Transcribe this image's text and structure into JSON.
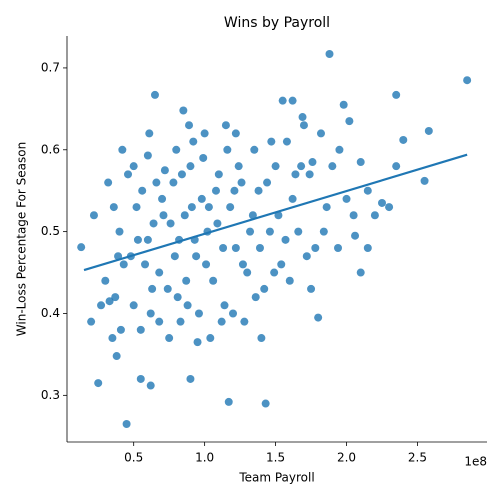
{
  "chart_data": {
    "type": "scatter",
    "title": "Wins by Payroll",
    "x_label": "Team Payroll",
    "y_label": "Win-Loss Percentage For Season",
    "x_offset_label": "1e8",
    "color": "#1f77b4",
    "xlim": [
      3000000,
      299000000
    ],
    "ylim": [
      0.243,
      0.739
    ],
    "xticks": [
      {
        "value": 50000000,
        "label": "0.5"
      },
      {
        "value": 100000000,
        "label": "1.0"
      },
      {
        "value": 150000000,
        "label": "1.5"
      },
      {
        "value": 200000000,
        "label": "2.0"
      },
      {
        "value": 250000000,
        "label": "2.5"
      }
    ],
    "yticks": [
      0.3,
      0.4,
      0.5,
      0.6,
      0.7
    ],
    "regression_line": {
      "x": [
        15000000,
        285000000
      ],
      "y": [
        0.453,
        0.594
      ]
    },
    "x": [
      45000000.0,
      143000000.0,
      117000000.0,
      25000000.0,
      188000000.0,
      285000000.0,
      65000000.0,
      235000000.0,
      85000000.0,
      198000000.0,
      155000000.0,
      162000000.0,
      13000000.0,
      20000000.0,
      22000000.0,
      35000000.0,
      38000000.0,
      55000000.0,
      62000000.0,
      90000000.0,
      95000000.0,
      255000000.0,
      258000000.0,
      240000000.0,
      210000000.0,
      215000000.0,
      180000000.0,
      175000000.0,
      42000000.0,
      50000000.0,
      60000000.0,
      72000000.0,
      80000000.0,
      92000000.0,
      100000000.0,
      115000000.0,
      122000000.0,
      135000000.0,
      30000000.0,
      33000000.0,
      37000000.0,
      40000000.0,
      43000000.0,
      48000000.0,
      52000000.0,
      56000000.0,
      60000000.0,
      64000000.0,
      68000000.0,
      70000000.0,
      74000000.0,
      78000000.0,
      82000000.0,
      86000000.0,
      90000000.0,
      94000000.0,
      98000000.0,
      102000000.0,
      106000000.0,
      110000000.0,
      114000000.0,
      118000000.0,
      122000000.0,
      126000000.0,
      130000000.0,
      134000000.0,
      138000000.0,
      142000000.0,
      146000000.0,
      150000000.0,
      154000000.0,
      158000000.0,
      162000000.0,
      166000000.0,
      170000000.0,
      174000000.0,
      178000000.0,
      182000000.0,
      186000000.0,
      190000000.0,
      195000000.0,
      200000000.0,
      205000000.0,
      210000000.0,
      215000000.0,
      220000000.0,
      225000000.0,
      230000000.0,
      235000000.0,
      202000000.0,
      50000000.0,
      55000000.0,
      62000000.0,
      68000000.0,
      75000000.0,
      83000000.0,
      88000000.0,
      96000000.0,
      104000000.0,
      112000000.0,
      120000000.0,
      128000000.0,
      136000000.0,
      140000000.0,
      32000000.0,
      36000000.0,
      46000000.0,
      53000000.0,
      58000000.0,
      66000000.0,
      76000000.0,
      84000000.0,
      91000000.0,
      99000000.0,
      108000000.0,
      116000000.0,
      124000000.0,
      132000000.0,
      144000000.0,
      152000000.0,
      160000000.0,
      168000000.0,
      176000000.0,
      71000000.0,
      79000000.0,
      87000000.0,
      93000000.0,
      101000000.0,
      109000000.0,
      113000000.0,
      127000000.0,
      139000000.0,
      149000000.0,
      157000000.0,
      164000000.0,
      172000000.0,
      184000000.0,
      194000000.0,
      206000000.0,
      41000000.0,
      27000000.0,
      39000000.0,
      63000000.0,
      81000000.0,
      103000000.0,
      121000000.0,
      147000000.0,
      169000000.0,
      61000000.0,
      89000000.0
    ],
    "values": [
      0.265,
      0.29,
      0.292,
      0.315,
      0.717,
      0.685,
      0.667,
      0.667,
      0.648,
      0.655,
      0.66,
      0.66,
      0.481,
      0.39,
      0.52,
      0.37,
      0.348,
      0.32,
      0.312,
      0.32,
      0.365,
      0.562,
      0.623,
      0.612,
      0.45,
      0.48,
      0.395,
      0.43,
      0.6,
      0.58,
      0.593,
      0.575,
      0.6,
      0.61,
      0.62,
      0.63,
      0.62,
      0.6,
      0.44,
      0.415,
      0.42,
      0.5,
      0.46,
      0.47,
      0.53,
      0.55,
      0.49,
      0.51,
      0.45,
      0.54,
      0.43,
      0.56,
      0.49,
      0.52,
      0.58,
      0.47,
      0.54,
      0.5,
      0.44,
      0.57,
      0.41,
      0.53,
      0.48,
      0.56,
      0.45,
      0.52,
      0.55,
      0.43,
      0.5,
      0.58,
      0.46,
      0.61,
      0.54,
      0.5,
      0.63,
      0.57,
      0.48,
      0.62,
      0.53,
      0.58,
      0.6,
      0.54,
      0.52,
      0.585,
      0.55,
      0.52,
      0.535,
      0.53,
      0.58,
      0.635,
      0.41,
      0.38,
      0.4,
      0.39,
      0.37,
      0.39,
      0.41,
      0.4,
      0.37,
      0.39,
      0.4,
      0.39,
      0.42,
      0.37,
      0.56,
      0.53,
      0.57,
      0.49,
      0.46,
      0.56,
      0.51,
      0.57,
      0.53,
      0.59,
      0.55,
      0.6,
      0.58,
      0.5,
      0.56,
      0.52,
      0.44,
      0.58,
      0.585,
      0.52,
      0.47,
      0.44,
      0.49,
      0.46,
      0.51,
      0.48,
      0.46,
      0.48,
      0.45,
      0.49,
      0.57,
      0.47,
      0.5,
      0.48,
      0.495,
      0.38,
      0.41,
      0.47,
      0.43,
      0.42,
      0.53,
      0.55,
      0.61,
      0.64,
      0.62,
      0.63
    ]
  }
}
